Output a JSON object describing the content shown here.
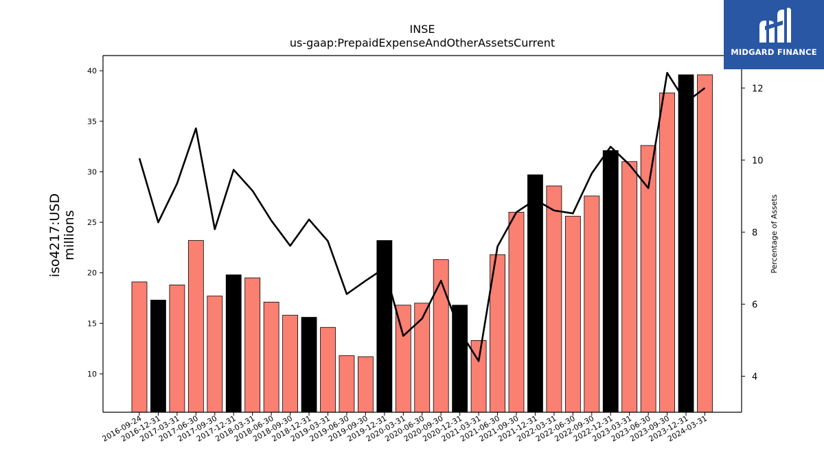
{
  "logo": {
    "text": "MIDGARD FINANCE",
    "background": "#2957a4"
  },
  "chart_data": {
    "type": "bar",
    "title": "INSE",
    "subtitle": "us-gaap:PrepaidExpenseAndOtherAssetsCurrent",
    "ylabel": "iso4217:USD",
    "ylabel_unit": "millions",
    "y2label": "Percentage of Assets",
    "categories": [
      "2016-09-24",
      "2016-12-31",
      "2017-03-31",
      "2017-06-30",
      "2017-09-30",
      "2017-12-31",
      "2018-03-31",
      "2018-06-30",
      "2018-09-30",
      "2018-12-31",
      "2019-03-31",
      "2019-06-30",
      "2019-09-30",
      "2019-12-31",
      "2020-03-31",
      "2020-06-30",
      "2020-09-30",
      "2020-12-31",
      "2021-03-31",
      "2021-06-30",
      "2021-09-30",
      "2021-12-31",
      "2022-03-31",
      "2022-06-30",
      "2022-09-30",
      "2022-12-31",
      "2023-03-31",
      "2023-06-30",
      "2023-09-30",
      "2023-12-31",
      "2024-03-31"
    ],
    "series": [
      {
        "kind": "bar",
        "values": [
          19.1,
          17.3,
          18.8,
          23.2,
          17.7,
          19.8,
          19.5,
          17.1,
          15.8,
          15.6,
          14.6,
          11.8,
          11.7,
          23.2,
          16.8,
          17.0,
          21.3,
          16.8,
          13.3,
          21.8,
          26.0,
          29.7,
          28.6,
          25.6,
          27.6,
          32.1,
          31.0,
          32.6,
          37.8,
          39.6,
          39.6
        ],
        "colors": [
          "salmon",
          "black",
          "salmon",
          "salmon",
          "salmon",
          "black",
          "salmon",
          "salmon",
          "salmon",
          "black",
          "salmon",
          "salmon",
          "salmon",
          "black",
          "salmon",
          "salmon",
          "salmon",
          "black",
          "salmon",
          "salmon",
          "salmon",
          "black",
          "salmon",
          "salmon",
          "salmon",
          "black",
          "salmon",
          "salmon",
          "salmon",
          "black",
          "salmon"
        ]
      },
      {
        "kind": "line",
        "axis": "right",
        "values": [
          10.05,
          8.27,
          9.35,
          10.88,
          8.08,
          9.73,
          9.15,
          8.32,
          7.62,
          8.35,
          7.75,
          6.28,
          6.65,
          7.0,
          5.12,
          5.6,
          6.65,
          5.25,
          4.42,
          7.6,
          8.55,
          8.9,
          8.6,
          8.52,
          9.63,
          10.37,
          9.87,
          9.22,
          12.42,
          11.6,
          12.0
        ]
      }
    ],
    "ylim": [
      6.2,
      41.5
    ],
    "y2lim": [
      3.0,
      12.9
    ],
    "yticks": [
      10,
      15,
      20,
      25,
      30,
      35,
      40
    ],
    "y2ticks": [
      4,
      6,
      8,
      10,
      12
    ],
    "colors": {
      "salmon": "#fa8072",
      "black": "#000000",
      "line": "#000000"
    },
    "grid": false,
    "legend": "none"
  }
}
